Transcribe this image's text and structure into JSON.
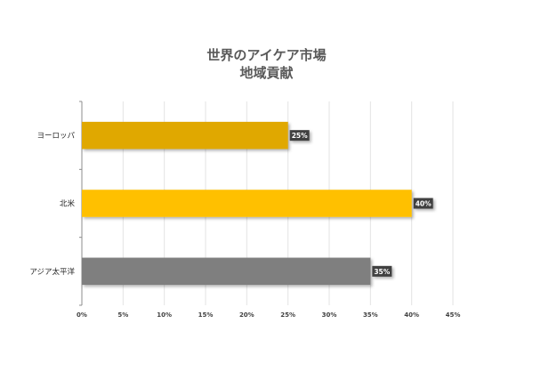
{
  "chart_data": {
    "type": "bar",
    "orientation": "horizontal",
    "title_lines": [
      "世界のアイケア市場",
      "地域貢献"
    ],
    "categories": [
      "ヨーロッパ",
      "北米",
      "アジア太平洋"
    ],
    "values": [
      25,
      40,
      35
    ],
    "data_labels": [
      "25%",
      "40%",
      "35%"
    ],
    "colors": [
      "#E0A800",
      "#FFC000",
      "#7F7F7F"
    ],
    "x_ticks": [
      0,
      5,
      10,
      15,
      20,
      25,
      30,
      35,
      40,
      45
    ],
    "x_tick_labels": [
      "0%",
      "5%",
      "10%",
      "15%",
      "20%",
      "25%",
      "30%",
      "35%",
      "40%",
      "45%"
    ],
    "xlim": [
      0,
      45
    ],
    "grid": "vertical",
    "legend": "none"
  }
}
